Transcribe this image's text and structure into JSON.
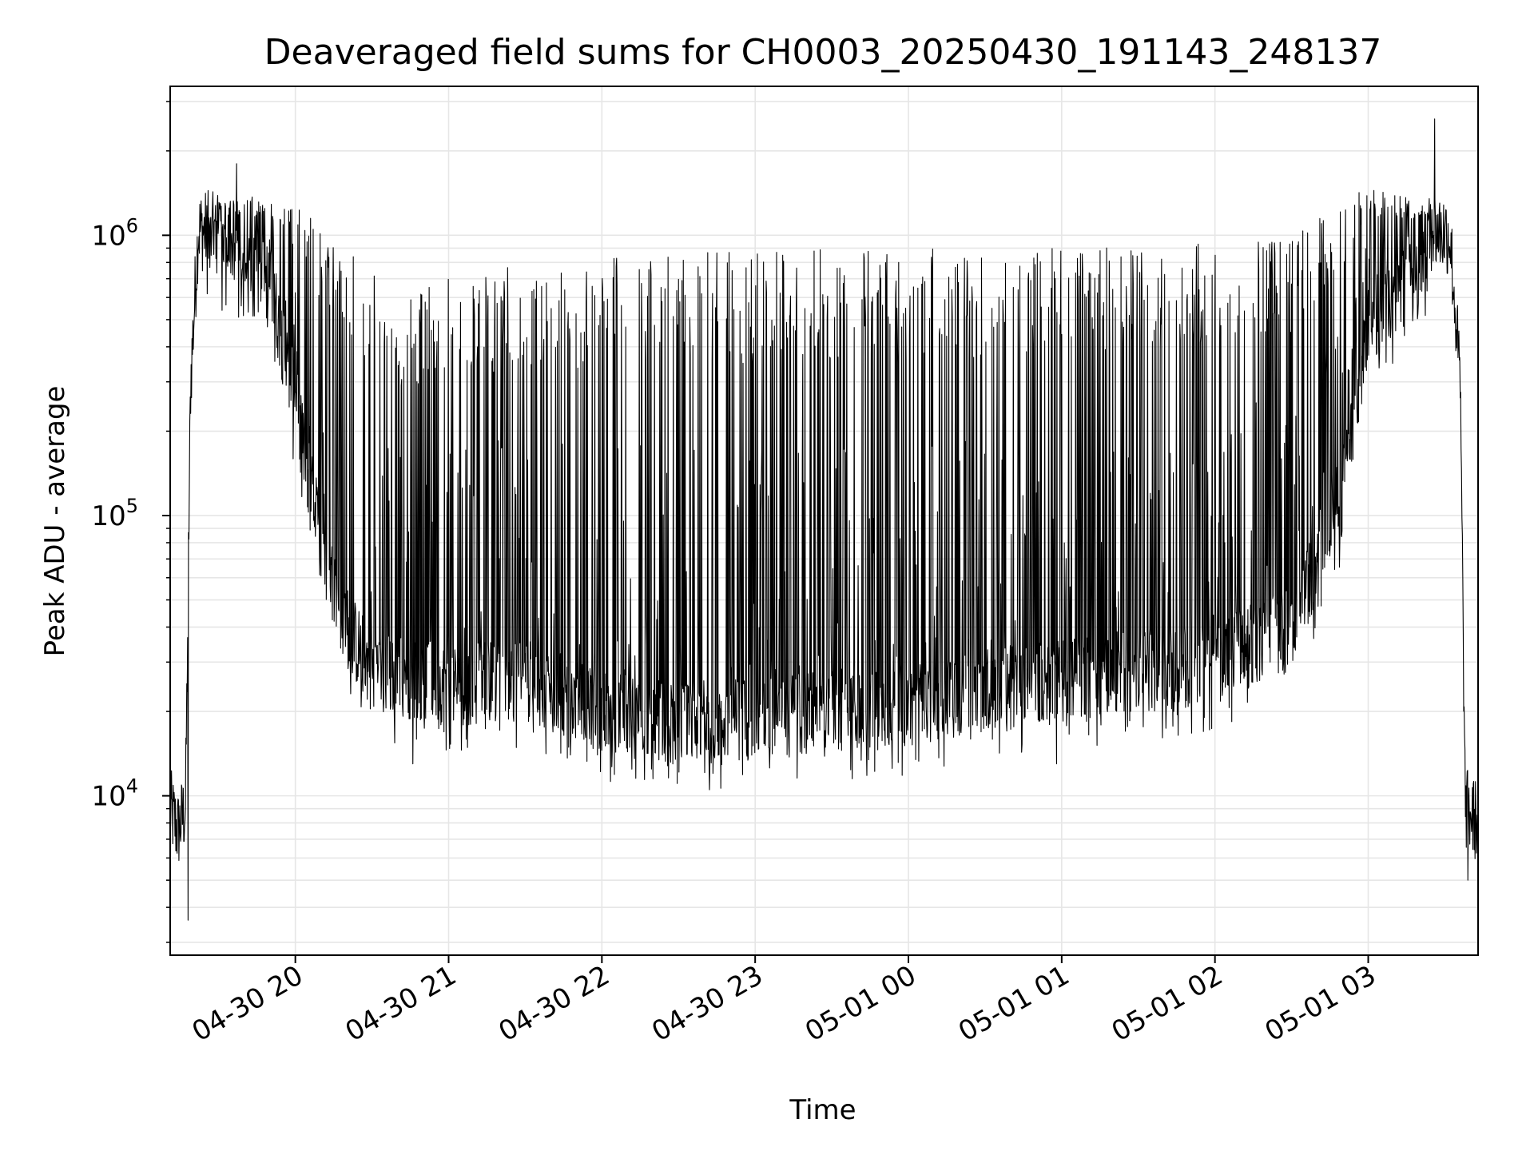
{
  "chart_data": {
    "type": "line",
    "title": "Deaveraged field sums for CH0003_20250430_191143_248137",
    "xlabel": "Time",
    "ylabel": "Peak ADU - average",
    "yscale": "log",
    "ylim": [
      2700,
      3400000
    ],
    "xlim": [
      "2025-04-30 19:11",
      "2025-05-01 03:43"
    ],
    "grid": true,
    "x_ticks": [
      {
        "value": "2025-04-30 20:00",
        "label": "04-30 20"
      },
      {
        "value": "2025-04-30 21:00",
        "label": "04-30 21"
      },
      {
        "value": "2025-04-30 22:00",
        "label": "04-30 22"
      },
      {
        "value": "2025-04-30 23:00",
        "label": "04-30 23"
      },
      {
        "value": "2025-05-01 00:00",
        "label": "05-01 00"
      },
      {
        "value": "2025-05-01 01:00",
        "label": "05-01 01"
      },
      {
        "value": "2025-05-01 02:00",
        "label": "05-01 02"
      },
      {
        "value": "2025-05-01 03:00",
        "label": "05-01 03"
      }
    ],
    "y_ticks": [
      {
        "value": 10000,
        "base": "10",
        "exp": "4"
      },
      {
        "value": 100000,
        "base": "10",
        "exp": "5"
      },
      {
        "value": 1000000,
        "base": "10",
        "exp": "6"
      }
    ],
    "series": [
      {
        "color": "#000000",
        "baseline_points": [
          {
            "x": "2025-04-30 19:11",
            "y": 9000
          },
          {
            "x": "2025-04-30 19:14",
            "y": 7500
          },
          {
            "x": "2025-04-30 19:17",
            "y": 9000
          },
          {
            "x": "2025-04-30 19:19",
            "y": 300000
          },
          {
            "x": "2025-04-30 19:22",
            "y": 1050000
          },
          {
            "x": "2025-04-30 19:30",
            "y": 1000000
          },
          {
            "x": "2025-04-30 19:40",
            "y": 700000
          },
          {
            "x": "2025-04-30 19:50",
            "y": 700000
          },
          {
            "x": "2025-04-30 20:00",
            "y": 250000
          },
          {
            "x": "2025-04-30 20:10",
            "y": 80000
          },
          {
            "x": "2025-04-30 20:20",
            "y": 40000
          },
          {
            "x": "2025-04-30 20:30",
            "y": 28000
          },
          {
            "x": "2025-04-30 21:00",
            "y": 25000
          },
          {
            "x": "2025-04-30 21:30",
            "y": 26000
          },
          {
            "x": "2025-04-30 22:00",
            "y": 20000
          },
          {
            "x": "2025-04-30 22:30",
            "y": 18000
          },
          {
            "x": "2025-04-30 23:00",
            "y": 19000
          },
          {
            "x": "2025-04-30 23:30",
            "y": 20000
          },
          {
            "x": "2025-05-01 00:00",
            "y": 21000
          },
          {
            "x": "2025-05-01 00:30",
            "y": 24000
          },
          {
            "x": "2025-05-01 01:00",
            "y": 26000
          },
          {
            "x": "2025-05-01 01:30",
            "y": 28000
          },
          {
            "x": "2025-05-01 02:00",
            "y": 30000
          },
          {
            "x": "2025-05-01 02:30",
            "y": 40000
          },
          {
            "x": "2025-05-01 02:50",
            "y": 120000
          },
          {
            "x": "2025-05-01 03:00",
            "y": 500000
          },
          {
            "x": "2025-05-01 03:10",
            "y": 600000
          },
          {
            "x": "2025-05-01 03:20",
            "y": 700000
          },
          {
            "x": "2025-05-01 03:25",
            "y": 1050000
          },
          {
            "x": "2025-05-01 03:32",
            "y": 1000000
          },
          {
            "x": "2025-05-01 03:36",
            "y": 300000
          },
          {
            "x": "2025-05-01 03:38",
            "y": 9000
          },
          {
            "x": "2025-05-01 03:43",
            "y": 8000
          }
        ],
        "spike_envelope": [
          {
            "x": "2025-04-30 19:25",
            "y": 1300000
          },
          {
            "x": "2025-04-30 19:50",
            "y": 1400000
          },
          {
            "x": "2025-04-30 20:15",
            "y": 1100000
          },
          {
            "x": "2025-04-30 20:40",
            "y": 600000
          },
          {
            "x": "2025-04-30 21:00",
            "y": 700000
          },
          {
            "x": "2025-04-30 21:30",
            "y": 800000
          },
          {
            "x": "2025-04-30 22:00",
            "y": 850000
          },
          {
            "x": "2025-04-30 23:00",
            "y": 900000
          },
          {
            "x": "2025-05-01 00:00",
            "y": 900000
          },
          {
            "x": "2025-05-01 01:00",
            "y": 900000
          },
          {
            "x": "2025-05-01 02:00",
            "y": 950000
          },
          {
            "x": "2025-05-01 02:30",
            "y": 1000000
          },
          {
            "x": "2025-05-01 03:00",
            "y": 1500000
          },
          {
            "x": "2025-05-01 03:25",
            "y": 1300000
          }
        ],
        "peaks": [
          {
            "x": "2025-04-30 19:37",
            "y": 1800000
          },
          {
            "x": "2025-05-01 03:26",
            "y": 2600000
          }
        ],
        "minima": [
          {
            "x": "2025-04-30 19:18",
            "y": 3600
          },
          {
            "x": "2025-04-30 20:46",
            "y": 13000
          },
          {
            "x": "2025-04-30 22:20",
            "y": 11500
          },
          {
            "x": "2025-04-30 23:38",
            "y": 11500
          },
          {
            "x": "2025-05-01 00:58",
            "y": 13000
          },
          {
            "x": "2025-05-01 03:39",
            "y": 5000
          }
        ]
      }
    ]
  }
}
